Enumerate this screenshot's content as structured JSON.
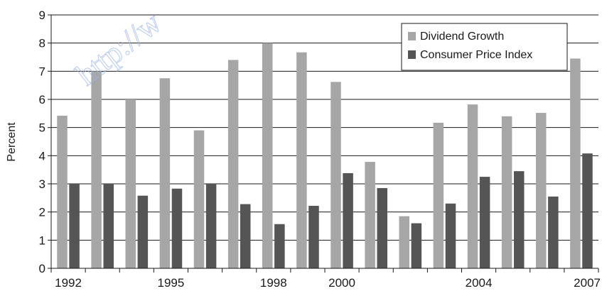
{
  "watermark": "http://w",
  "chart_data": {
    "type": "bar",
    "title": "",
    "xlabel": "",
    "ylabel": "Percent",
    "ylim": [
      0,
      9
    ],
    "yticks": [
      0,
      1,
      2,
      3,
      4,
      5,
      6,
      7,
      8,
      9
    ],
    "grid": true,
    "legend_position": "top-right",
    "categories": [
      "1992",
      "1993",
      "1994",
      "1995",
      "1996",
      "1997",
      "1998",
      "1999",
      "2000",
      "2001",
      "2002",
      "2003",
      "2004",
      "2005",
      "2006",
      "2007"
    ],
    "x_tick_labels": [
      {
        "category": "1992",
        "label": "1992"
      },
      {
        "category": "1995",
        "label": "1995"
      },
      {
        "category": "1998",
        "label": "1998"
      },
      {
        "category": "2000",
        "label": "2000"
      },
      {
        "category": "2004",
        "label": "2004"
      },
      {
        "category": "2007",
        "label": "2007"
      }
    ],
    "series": [
      {
        "name": "Dividend Growth",
        "color": "#a6a6a6",
        "values": [
          5.42,
          7.0,
          6.0,
          6.75,
          4.9,
          7.4,
          8.0,
          7.67,
          6.62,
          3.78,
          1.85,
          5.17,
          5.82,
          5.4,
          5.52,
          7.45
        ]
      },
      {
        "name": "Consumer Price Index",
        "color": "#555555",
        "values": [
          3.0,
          3.0,
          2.58,
          2.83,
          3.0,
          2.28,
          1.57,
          2.22,
          3.38,
          2.85,
          1.6,
          2.3,
          3.25,
          3.45,
          2.55,
          4.08
        ]
      }
    ]
  }
}
